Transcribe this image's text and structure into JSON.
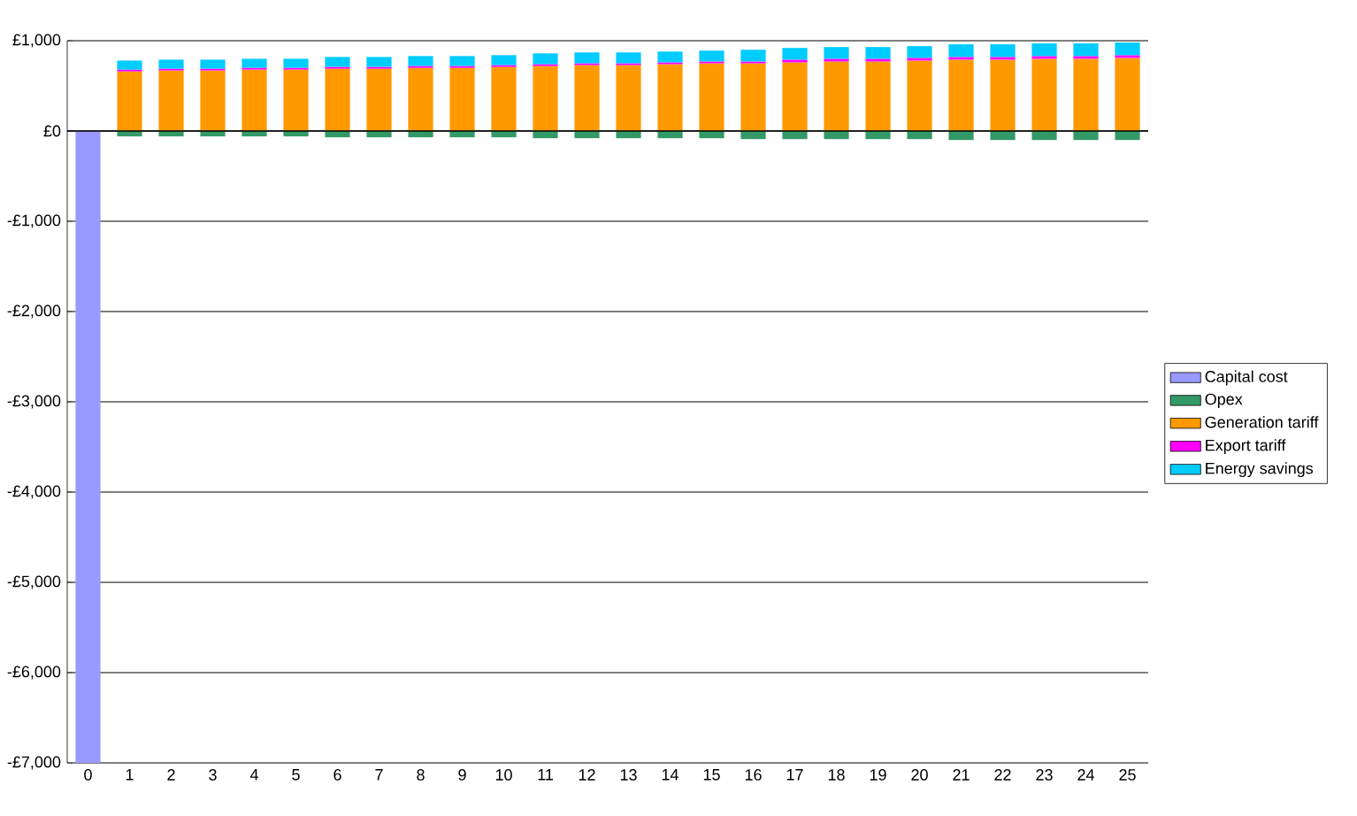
{
  "chart_data": {
    "type": "bar",
    "stacked": true,
    "categories": [
      "0",
      "1",
      "2",
      "3",
      "4",
      "5",
      "6",
      "7",
      "8",
      "9",
      "10",
      "11",
      "12",
      "13",
      "14",
      "15",
      "16",
      "17",
      "18",
      "19",
      "20",
      "21",
      "22",
      "23",
      "24",
      "25"
    ],
    "series": [
      {
        "name": "Capital cost",
        "color": "#9999ff",
        "values": [
          -7000,
          null,
          null,
          null,
          null,
          null,
          null,
          null,
          null,
          null,
          null,
          null,
          null,
          null,
          null,
          null,
          null,
          null,
          null,
          null,
          null,
          null,
          null,
          null,
          null,
          null
        ]
      },
      {
        "name": "Opex",
        "color": "#339966",
        "values": [
          null,
          -60,
          -60,
          -60,
          -60,
          -60,
          -70,
          -70,
          -70,
          -70,
          -70,
          -80,
          -80,
          -80,
          -80,
          -80,
          -90,
          -90,
          -90,
          -90,
          -90,
          -100,
          -100,
          -100,
          -100,
          -100
        ]
      },
      {
        "name": "Generation tariff",
        "color": "#ff9900",
        "values": [
          null,
          660,
          670,
          670,
          680,
          680,
          690,
          690,
          700,
          700,
          710,
          720,
          730,
          730,
          740,
          750,
          750,
          760,
          770,
          770,
          780,
          790,
          790,
          800,
          800,
          810
        ]
      },
      {
        "name": "Export tariff",
        "color": "#ff00ff",
        "values": [
          null,
          20,
          20,
          20,
          20,
          20,
          20,
          20,
          20,
          20,
          20,
          20,
          20,
          20,
          20,
          20,
          20,
          30,
          30,
          30,
          30,
          30,
          30,
          30,
          30,
          30
        ]
      },
      {
        "name": "Energy savings",
        "color": "#00ccff",
        "values": [
          null,
          100,
          100,
          100,
          100,
          100,
          110,
          110,
          110,
          110,
          110,
          120,
          120,
          120,
          120,
          120,
          130,
          130,
          130,
          130,
          130,
          140,
          140,
          140,
          140,
          140
        ]
      }
    ],
    "ylim": [
      -7000,
      1000
    ],
    "yticks": [
      {
        "value": -7000,
        "label": "-£7,000"
      },
      {
        "value": -6000,
        "label": "-£6,000"
      },
      {
        "value": -5000,
        "label": "-£5,000"
      },
      {
        "value": -4000,
        "label": "-£4,000"
      },
      {
        "value": -3000,
        "label": "-£3,000"
      },
      {
        "value": -2000,
        "label": "-£2,000"
      },
      {
        "value": -1000,
        "label": "-£1,000"
      },
      {
        "value": 0,
        "label": "£0"
      },
      {
        "value": 1000,
        "label": "£1,000"
      }
    ],
    "grid": "y",
    "legend": "right"
  }
}
